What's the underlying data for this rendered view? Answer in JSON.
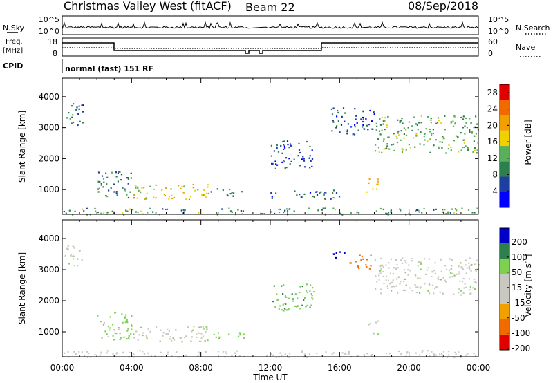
{
  "header": {
    "title": "Christmas Valley West (fitACF)",
    "beam": "Beam 22",
    "date": "08/Sep/2018"
  },
  "param_panels": {
    "nsky_label": "N.Sky",
    "nsearch_label": "N.Search",
    "noise_ticks": [
      "10^5",
      "10^0"
    ],
    "freq_label": "Freq.",
    "freq_unit": "[MHz]",
    "freq_ticks": [
      "18",
      "8"
    ],
    "nave_label": "Nave",
    "nave_ticks": [
      "60",
      "0"
    ],
    "cpid_label": "CPID",
    "cpid_text": "normal (fast) 151 RF"
  },
  "colors": {
    "power_scale": [
      "#0000ff",
      "#1f3fa0",
      "#2e7f4e",
      "#58b05a",
      "#f0d000",
      "#f0a000",
      "#f06a00",
      "#e00000"
    ],
    "velocity_scale": [
      "#e00000",
      "#f06a00",
      "#f0a000",
      "#c8c8c0",
      "#c8c8c0",
      "#7ed050",
      "#2e7f4e",
      "#0000c8"
    ],
    "ground_scatter": "#c8c8c0"
  },
  "chart_data": [
    {
      "type": "heatmap",
      "title": "",
      "xlabel": "",
      "ylabel": "Slant Range [km]",
      "x_ticks": [
        "00:00",
        "04:00",
        "08:00",
        "12:00",
        "16:00",
        "20:00",
        "00:00"
      ],
      "y_ticks": [
        1000,
        2000,
        3000,
        4000
      ],
      "ylim": [
        200,
        4600
      ],
      "xlim_hours": [
        0,
        24
      ],
      "colorbar_label": "Power [dB]",
      "colorbar_ticks": [
        4,
        8,
        12,
        16,
        20,
        24,
        28
      ],
      "colorbar_range": [
        0,
        30
      ],
      "data_gap_hours": [
        10.6,
        11.4
      ],
      "echo_regions": [
        {
          "t_start": 0.0,
          "t_end": 1.2,
          "r_low": 3100,
          "r_high": 3800,
          "power_db": 8
        },
        {
          "t_start": 2.0,
          "t_end": 4.0,
          "r_low": 750,
          "r_high": 1650,
          "power_db": 9
        },
        {
          "t_start": 4.0,
          "t_end": 8.5,
          "r_low": 700,
          "r_high": 1200,
          "power_db": 18
        },
        {
          "t_start": 8.5,
          "t_end": 10.5,
          "r_low": 800,
          "r_high": 1050,
          "power_db": 10
        },
        {
          "t_start": 0.0,
          "t_end": 24.0,
          "r_low": 200,
          "r_high": 420,
          "power_db": 12
        },
        {
          "t_start": 12.0,
          "t_end": 16.0,
          "r_low": 700,
          "r_high": 1000,
          "power_db": 8
        },
        {
          "t_start": 12.0,
          "t_end": 14.5,
          "r_low": 1700,
          "r_high": 2600,
          "power_db": 6
        },
        {
          "t_start": 15.5,
          "t_end": 18.0,
          "r_low": 2800,
          "r_high": 3700,
          "power_db": 7
        },
        {
          "t_start": 17.5,
          "t_end": 18.2,
          "r_low": 900,
          "r_high": 1400,
          "power_db": 19
        },
        {
          "t_start": 18.0,
          "t_end": 24.0,
          "r_low": 2200,
          "r_high": 3400,
          "power_db": 13
        }
      ]
    },
    {
      "type": "heatmap",
      "title": "",
      "xlabel": "Time UT",
      "ylabel": "Slant Range [km]",
      "x_ticks": [
        "00:00",
        "04:00",
        "08:00",
        "12:00",
        "16:00",
        "20:00",
        "00:00"
      ],
      "y_ticks": [
        1000,
        2000,
        3000,
        4000
      ],
      "ylim": [
        200,
        4600
      ],
      "xlim_hours": [
        0,
        24
      ],
      "colorbar_label": "Velocity [m s^-1]",
      "colorbar_ticks": [
        200,
        100,
        50,
        15,
        -15,
        -50,
        -100,
        -200
      ],
      "data_gap_hours": [
        10.6,
        11.4
      ],
      "echo_regions": [
        {
          "t_start": 0.0,
          "t_end": 1.2,
          "r_low": 3100,
          "r_high": 3800,
          "velocity": 0
        },
        {
          "t_start": 2.0,
          "t_end": 4.0,
          "r_low": 750,
          "r_high": 1650,
          "velocity": 30
        },
        {
          "t_start": 4.0,
          "t_end": 8.5,
          "r_low": 700,
          "r_high": 1200,
          "velocity": 5
        },
        {
          "t_start": 8.5,
          "t_end": 10.5,
          "r_low": 800,
          "r_high": 1050,
          "velocity": 30
        },
        {
          "t_start": 0.0,
          "t_end": 24.0,
          "r_low": 200,
          "r_high": 420,
          "velocity": -30
        },
        {
          "t_start": 12.0,
          "t_end": 14.5,
          "r_low": 1700,
          "r_high": 2600,
          "velocity": 40
        },
        {
          "t_start": 15.5,
          "t_end": 16.3,
          "r_low": 3300,
          "r_high": 3600,
          "velocity": 200
        },
        {
          "t_start": 16.5,
          "t_end": 17.8,
          "r_low": 3000,
          "r_high": 3500,
          "velocity": -150
        },
        {
          "t_start": 17.5,
          "t_end": 18.2,
          "r_low": 900,
          "r_high": 1400,
          "velocity": 0
        },
        {
          "t_start": 18.0,
          "t_end": 24.0,
          "r_low": 2200,
          "r_high": 3400,
          "velocity": 0
        }
      ]
    }
  ]
}
